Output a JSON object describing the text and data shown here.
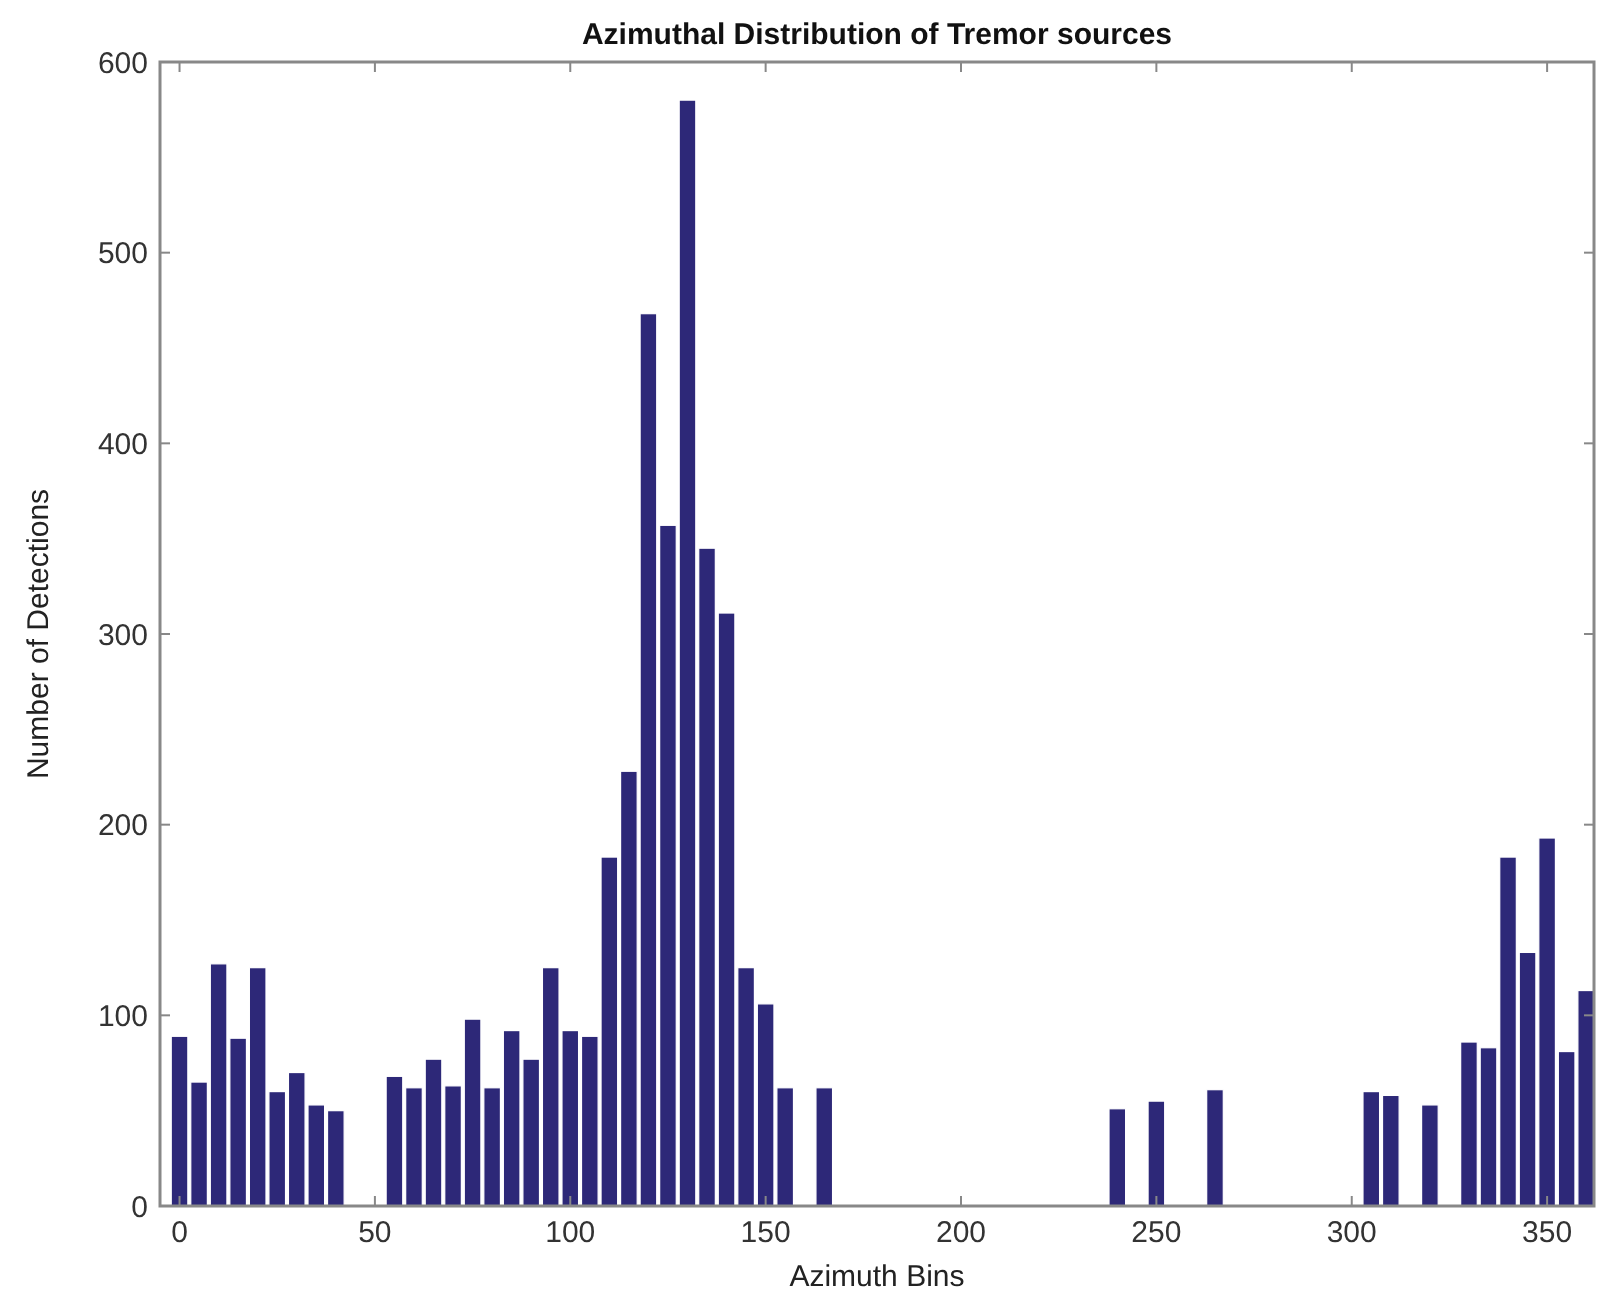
{
  "chart_data": {
    "type": "bar",
    "title": "Azimuthal Distribution of Tremor sources",
    "xlabel": "Azimuth Bins",
    "ylabel": "Number of Detections",
    "x": [
      0,
      5,
      10,
      15,
      20,
      25,
      30,
      35,
      40,
      45,
      50,
      55,
      60,
      65,
      70,
      75,
      80,
      85,
      90,
      95,
      100,
      105,
      110,
      115,
      120,
      125,
      130,
      135,
      140,
      145,
      150,
      155,
      160,
      165,
      170,
      175,
      180,
      185,
      190,
      195,
      200,
      205,
      210,
      215,
      220,
      225,
      230,
      235,
      240,
      245,
      250,
      255,
      260,
      265,
      270,
      275,
      280,
      285,
      290,
      295,
      300,
      305,
      310,
      315,
      320,
      325,
      330,
      335,
      340,
      345,
      350,
      355,
      360
    ],
    "values": [
      89,
      65,
      127,
      88,
      125,
      60,
      70,
      53,
      50,
      0,
      0,
      68,
      62,
      77,
      63,
      98,
      62,
      92,
      77,
      125,
      92,
      89,
      183,
      228,
      468,
      357,
      580,
      345,
      311,
      125,
      106,
      62,
      0,
      62,
      0,
      0,
      0,
      0,
      0,
      0,
      0,
      0,
      0,
      0,
      0,
      0,
      0,
      0,
      51,
      0,
      55,
      0,
      0,
      61,
      0,
      0,
      0,
      0,
      0,
      0,
      0,
      60,
      58,
      0,
      53,
      0,
      86,
      83,
      183,
      133,
      193,
      81,
      113
    ],
    "color": "#2d2878",
    "xlim": [
      -5,
      362
    ],
    "ylim": [
      0,
      600
    ],
    "xticks": [
      0,
      50,
      100,
      150,
      200,
      250,
      300,
      350
    ],
    "yticks": [
      0,
      100,
      200,
      300,
      400,
      500,
      600
    ],
    "grid": false
  }
}
